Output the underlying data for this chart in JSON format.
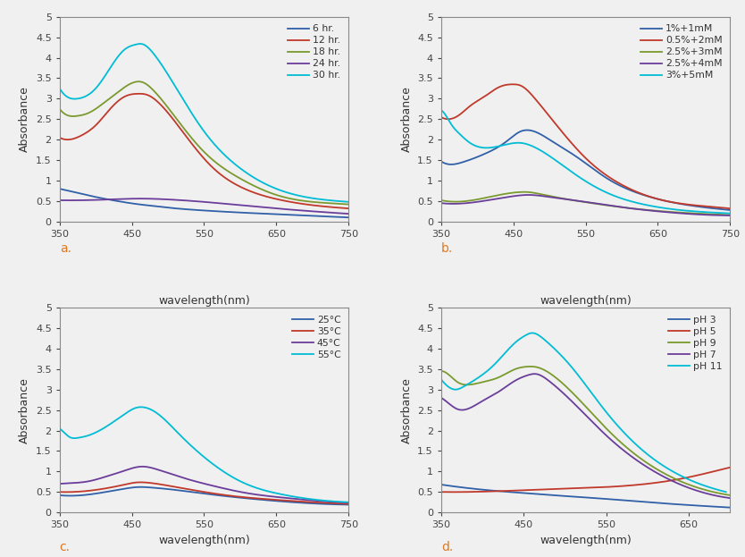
{
  "subplot_a": {
    "title": "",
    "xlabel": "",
    "ylabel": "Absorbance",
    "xlim": [
      350,
      750
    ],
    "ylim": [
      0,
      5
    ],
    "yticks": [
      0,
      0.5,
      1,
      1.5,
      2,
      2.5,
      3,
      3.5,
      4,
      4.5,
      5
    ],
    "ytick_labels": [
      "0",
      "0.5",
      "1",
      "1.5",
      "2",
      "2.5",
      "3",
      "3.5",
      "4",
      "4.5",
      "5"
    ],
    "xticks": [
      350,
      450,
      550,
      650,
      750
    ],
    "label": "a.",
    "series": [
      {
        "label": "6 hr.",
        "color": "#3060a8",
        "x": [
          350,
          370,
          400,
          430,
          460,
          480,
          500,
          550,
          600,
          650,
          700,
          750
        ],
        "y": [
          0.8,
          0.72,
          0.6,
          0.5,
          0.42,
          0.38,
          0.34,
          0.27,
          0.22,
          0.18,
          0.14,
          0.1
        ]
      },
      {
        "label": "12 hr.",
        "color": "#c0392b",
        "x": [
          350,
          360,
          380,
          400,
          420,
          440,
          460,
          470,
          490,
          520,
          560,
          600,
          650,
          700,
          750
        ],
        "y": [
          2.05,
          2.0,
          2.1,
          2.35,
          2.75,
          3.05,
          3.12,
          3.1,
          2.85,
          2.2,
          1.35,
          0.85,
          0.55,
          0.4,
          0.32
        ]
      },
      {
        "label": "18 hr.",
        "color": "#7a9a2e",
        "x": [
          350,
          360,
          375,
          390,
          410,
          430,
          450,
          465,
          480,
          510,
          550,
          600,
          650,
          700,
          750
        ],
        "y": [
          2.75,
          2.6,
          2.58,
          2.65,
          2.88,
          3.15,
          3.38,
          3.4,
          3.2,
          2.55,
          1.7,
          1.05,
          0.65,
          0.48,
          0.42
        ]
      },
      {
        "label": "24 hr.",
        "color": "#6a3d9a",
        "x": [
          350,
          380,
          420,
          460,
          500,
          550,
          600,
          650,
          700,
          750
        ],
        "y": [
          0.52,
          0.52,
          0.54,
          0.56,
          0.54,
          0.48,
          0.4,
          0.32,
          0.25,
          0.19
        ]
      },
      {
        "label": "30 hr.",
        "color": "#00bcd4",
        "x": [
          350,
          360,
          375,
          385,
          400,
          420,
          440,
          455,
          465,
          480,
          510,
          550,
          600,
          650,
          700,
          750
        ],
        "y": [
          3.25,
          3.05,
          3.0,
          3.05,
          3.25,
          3.75,
          4.2,
          4.32,
          4.33,
          4.1,
          3.3,
          2.2,
          1.3,
          0.8,
          0.57,
          0.48
        ]
      }
    ]
  },
  "subplot_b": {
    "title": "",
    "xlabel": "",
    "ylabel": "Absorbance",
    "xlim": [
      350,
      750
    ],
    "ylim": [
      0,
      5
    ],
    "yticks": [
      0,
      0.5,
      1,
      1.5,
      2,
      2.5,
      3,
      3.5,
      4,
      4.5,
      5
    ],
    "ytick_labels": [
      "0",
      "0.5",
      "1",
      "1.5",
      "2",
      "2.5",
      "3",
      "3.5",
      "4",
      "4.5",
      "5"
    ],
    "xticks": [
      350,
      450,
      550,
      650,
      750
    ],
    "label": "b.",
    "series": [
      {
        "label": "1%+1mM",
        "color": "#3060a8",
        "x": [
          350,
          360,
          380,
          410,
          440,
          460,
          475,
          500,
          540,
          580,
          630,
          700,
          750
        ],
        "y": [
          1.47,
          1.4,
          1.45,
          1.65,
          1.95,
          2.2,
          2.22,
          2.0,
          1.55,
          1.05,
          0.65,
          0.38,
          0.28
        ]
      },
      {
        "label": "0.5%+2mM",
        "color": "#c0392b",
        "x": [
          350,
          360,
          375,
          390,
          410,
          430,
          450,
          460,
          480,
          510,
          550,
          600,
          650,
          700,
          750
        ],
        "y": [
          2.55,
          2.5,
          2.6,
          2.82,
          3.05,
          3.28,
          3.35,
          3.32,
          3.0,
          2.35,
          1.55,
          0.9,
          0.55,
          0.4,
          0.32
        ]
      },
      {
        "label": "2.5%+3mM",
        "color": "#7a9a2e",
        "x": [
          350,
          400,
          440,
          460,
          470,
          490,
          540,
          600,
          650,
          700,
          750
        ],
        "y": [
          0.52,
          0.54,
          0.68,
          0.72,
          0.72,
          0.66,
          0.5,
          0.35,
          0.26,
          0.2,
          0.16
        ]
      },
      {
        "label": "2.5%+4mM",
        "color": "#6a3d9a",
        "x": [
          350,
          400,
          450,
          470,
          500,
          550,
          600,
          650,
          700,
          750
        ],
        "y": [
          0.45,
          0.48,
          0.62,
          0.65,
          0.6,
          0.48,
          0.35,
          0.25,
          0.18,
          0.15
        ]
      },
      {
        "label": "3%+5mM",
        "color": "#00bcd4",
        "x": [
          350,
          358,
          365,
          375,
          390,
          415,
          440,
          460,
          475,
          500,
          540,
          580,
          630,
          700,
          750
        ],
        "y": [
          2.72,
          2.55,
          2.35,
          2.15,
          1.92,
          1.8,
          1.88,
          1.92,
          1.85,
          1.6,
          1.1,
          0.7,
          0.42,
          0.25,
          0.2
        ]
      }
    ]
  },
  "subplot_c": {
    "title": "wavelength(nm)",
    "xlabel": "wavelength(nm)",
    "ylabel": "Absorbance",
    "xlim": [
      350,
      750
    ],
    "ylim": [
      0,
      5
    ],
    "yticks": [
      0,
      0.5,
      1,
      1.5,
      2,
      2.5,
      3,
      3.5,
      4,
      4.5,
      5
    ],
    "ytick_labels": [
      "0",
      "0.5",
      "1",
      "1.5",
      "2",
      "2.5",
      "3",
      "3.5",
      "4",
      "4.5",
      "5"
    ],
    "xticks": [
      350,
      450,
      550,
      650,
      750
    ],
    "label": "c.",
    "series": [
      {
        "label": "25°C",
        "color": "#3060a8",
        "x": [
          350,
          400,
          440,
          460,
          475,
          500,
          550,
          600,
          650,
          700,
          750
        ],
        "y": [
          0.42,
          0.46,
          0.58,
          0.62,
          0.61,
          0.57,
          0.46,
          0.36,
          0.28,
          0.22,
          0.19
        ]
      },
      {
        "label": "35°C",
        "color": "#c0392b",
        "x": [
          350,
          400,
          440,
          455,
          470,
          495,
          540,
          590,
          640,
          700,
          750
        ],
        "y": [
          0.5,
          0.55,
          0.68,
          0.73,
          0.73,
          0.67,
          0.53,
          0.4,
          0.32,
          0.25,
          0.21
        ]
      },
      {
        "label": "45°C",
        "color": "#6a3d9a",
        "x": [
          350,
          370,
          390,
          415,
          440,
          455,
          465,
          485,
          520,
          560,
          610,
          660,
          710,
          750
        ],
        "y": [
          0.7,
          0.72,
          0.76,
          0.88,
          1.02,
          1.1,
          1.12,
          1.05,
          0.85,
          0.66,
          0.47,
          0.36,
          0.28,
          0.24
        ]
      },
      {
        "label": "55°C",
        "color": "#00bcd4",
        "x": [
          350,
          358,
          365,
          375,
          390,
          415,
          440,
          455,
          465,
          485,
          515,
          555,
          605,
          655,
          710,
          750
        ],
        "y": [
          2.05,
          1.92,
          1.83,
          1.82,
          1.88,
          2.1,
          2.4,
          2.55,
          2.57,
          2.42,
          1.92,
          1.28,
          0.72,
          0.45,
          0.3,
          0.25
        ]
      }
    ]
  },
  "subplot_d": {
    "title": "wavelength(nm)",
    "xlabel": "wavelength(nm)",
    "ylabel": "Absorbance",
    "xlim": [
      350,
      700
    ],
    "ylim": [
      0,
      5
    ],
    "yticks": [
      0,
      0.5,
      1,
      1.5,
      2,
      2.5,
      3,
      3.5,
      4,
      4.5,
      5
    ],
    "ytick_labels": [
      "0",
      "0.5",
      "1",
      "1.5",
      "2",
      "2.5",
      "3",
      "3.5",
      "4",
      "4.5",
      "5"
    ],
    "xticks": [
      350,
      450,
      550,
      650
    ],
    "label": "d.",
    "series": [
      {
        "label": "pH 3",
        "color": "#3060a8",
        "x": [
          350,
          380,
          420,
          460,
          500,
          550,
          600,
          650,
          700
        ],
        "y": [
          0.68,
          0.6,
          0.52,
          0.46,
          0.4,
          0.33,
          0.25,
          0.18,
          0.12
        ]
      },
      {
        "label": "pH 5",
        "color": "#c0392b",
        "x": [
          350,
          380,
          420,
          460,
          500,
          550,
          600,
          640,
          680,
          700
        ],
        "y": [
          0.5,
          0.5,
          0.52,
          0.55,
          0.58,
          0.62,
          0.7,
          0.82,
          1.0,
          1.1
        ]
      },
      {
        "label": "pH 9",
        "color": "#7a9a2e",
        "x": [
          350,
          360,
          370,
          385,
          400,
          420,
          440,
          455,
          465,
          485,
          515,
          555,
          600,
          650,
          700
        ],
        "y": [
          3.45,
          3.35,
          3.18,
          3.12,
          3.18,
          3.3,
          3.5,
          3.56,
          3.55,
          3.35,
          2.8,
          1.95,
          1.2,
          0.68,
          0.42
        ]
      },
      {
        "label": "pH 7",
        "color": "#6a3d9a",
        "x": [
          350,
          360,
          370,
          385,
          400,
          420,
          440,
          455,
          465,
          480,
          510,
          550,
          600,
          650,
          700
        ],
        "y": [
          2.8,
          2.65,
          2.52,
          2.55,
          2.72,
          2.95,
          3.22,
          3.35,
          3.38,
          3.22,
          2.68,
          1.88,
          1.1,
          0.6,
          0.35
        ]
      },
      {
        "label": "pH 11",
        "color": "#00bcd4",
        "x": [
          350,
          358,
          368,
          378,
          392,
          415,
          440,
          452,
          460,
          475,
          508,
          548,
          595,
          645,
          695
        ],
        "y": [
          3.25,
          3.08,
          3.0,
          3.08,
          3.25,
          3.62,
          4.15,
          4.32,
          4.38,
          4.22,
          3.55,
          2.5,
          1.5,
          0.85,
          0.5
        ]
      }
    ]
  },
  "label_color": "#e07820",
  "background_color": "#f0f0f0",
  "plot_bg": "#f0f0f0",
  "axis_color": "#444444",
  "spine_color": "#888888"
}
